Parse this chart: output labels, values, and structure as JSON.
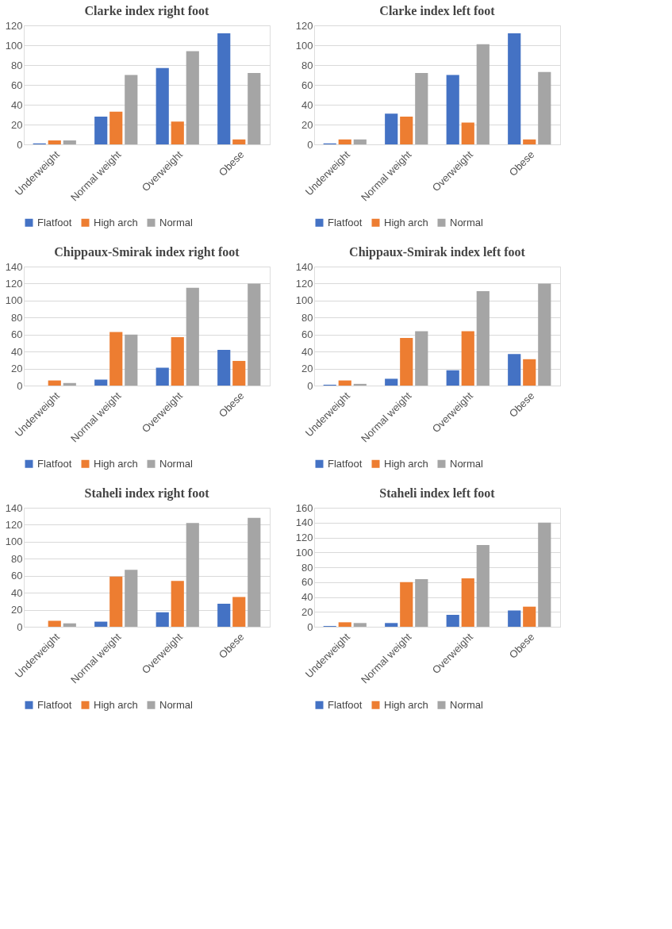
{
  "chart_data": [
    {
      "type": "bar",
      "title": "Clarke index right foot",
      "categories": [
        "Underweight",
        "Normal weight",
        "Overweight",
        "Obese"
      ],
      "ylim": [
        0,
        120
      ],
      "yticks": [
        0,
        20,
        40,
        60,
        80,
        100,
        120
      ],
      "grid": "y",
      "legend": "bottom",
      "series": [
        {
          "name": "Flatfoot",
          "color": "#4472c4",
          "values": [
            1,
            28,
            77,
            112
          ]
        },
        {
          "name": "High arch",
          "color": "#ed7d31",
          "values": [
            4,
            33,
            23,
            5
          ]
        },
        {
          "name": "Normal",
          "color": "#a5a5a5",
          "values": [
            4,
            70,
            94,
            72
          ]
        }
      ]
    },
    {
      "type": "bar",
      "title": "Clarke index left foot",
      "categories": [
        "Underweight",
        "Normal weight",
        "Overweight",
        "Obese"
      ],
      "ylim": [
        0,
        120
      ],
      "yticks": [
        0,
        20,
        40,
        60,
        80,
        100,
        120
      ],
      "grid": "y",
      "legend": "bottom",
      "series": [
        {
          "name": "Flatfoot",
          "color": "#4472c4",
          "values": [
            1,
            31,
            70,
            112
          ]
        },
        {
          "name": "High arch",
          "color": "#ed7d31",
          "values": [
            5,
            28,
            22,
            5
          ]
        },
        {
          "name": "Normal",
          "color": "#a5a5a5",
          "values": [
            5,
            72,
            101,
            73
          ]
        }
      ]
    },
    {
      "type": "bar",
      "title": "Chippaux-Smirak index right foot",
      "categories": [
        "Underweight",
        "Normal weight",
        "Overweight",
        "Obese"
      ],
      "ylim": [
        0,
        140
      ],
      "yticks": [
        0,
        20,
        40,
        60,
        80,
        100,
        120,
        140
      ],
      "grid": "y",
      "legend": "bottom",
      "series": [
        {
          "name": "Flatfoot",
          "color": "#4472c4",
          "values": [
            0,
            7,
            21,
            42
          ]
        },
        {
          "name": "High arch",
          "color": "#ed7d31",
          "values": [
            6,
            63,
            57,
            29
          ]
        },
        {
          "name": "Normal",
          "color": "#a5a5a5",
          "values": [
            3,
            60,
            115,
            120
          ]
        }
      ]
    },
    {
      "type": "bar",
      "title": "Chippaux-Smirak index left foot",
      "categories": [
        "Underweight",
        "Normal weight",
        "Overweight",
        "Obese"
      ],
      "ylim": [
        0,
        140
      ],
      "yticks": [
        0,
        20,
        40,
        60,
        80,
        100,
        120,
        140
      ],
      "grid": "y",
      "legend": "bottom",
      "series": [
        {
          "name": "Flatfoot",
          "color": "#4472c4",
          "values": [
            1,
            8,
            18,
            37
          ]
        },
        {
          "name": "High arch",
          "color": "#ed7d31",
          "values": [
            6,
            56,
            64,
            31
          ]
        },
        {
          "name": "Normal",
          "color": "#a5a5a5",
          "values": [
            2,
            64,
            111,
            120
          ]
        }
      ]
    },
    {
      "type": "bar",
      "title": "Staheli index right foot",
      "categories": [
        "Underweight",
        "Normal weight",
        "Overweight",
        "Obese"
      ],
      "ylim": [
        0,
        140
      ],
      "yticks": [
        0,
        20,
        40,
        60,
        80,
        100,
        120,
        140
      ],
      "grid": "y",
      "legend": "bottom",
      "series": [
        {
          "name": "Flatfoot",
          "color": "#4472c4",
          "values": [
            0,
            6,
            17,
            27
          ]
        },
        {
          "name": "High arch",
          "color": "#ed7d31",
          "values": [
            7,
            59,
            54,
            35
          ]
        },
        {
          "name": "Normal",
          "color": "#a5a5a5",
          "values": [
            4,
            67,
            122,
            128
          ]
        }
      ]
    },
    {
      "type": "bar",
      "title": "Staheli index left foot",
      "categories": [
        "Underweight",
        "Normal weight",
        "Overweight",
        "Obese"
      ],
      "ylim": [
        0,
        160
      ],
      "yticks": [
        0,
        20,
        40,
        60,
        80,
        100,
        120,
        140,
        160
      ],
      "grid": "y",
      "legend": "bottom",
      "series": [
        {
          "name": "Flatfoot",
          "color": "#4472c4",
          "values": [
            1,
            5,
            16,
            22
          ]
        },
        {
          "name": "High arch",
          "color": "#ed7d31",
          "values": [
            6,
            60,
            65,
            27
          ]
        },
        {
          "name": "Normal",
          "color": "#a5a5a5",
          "values": [
            5,
            64,
            110,
            140
          ]
        }
      ]
    }
  ]
}
